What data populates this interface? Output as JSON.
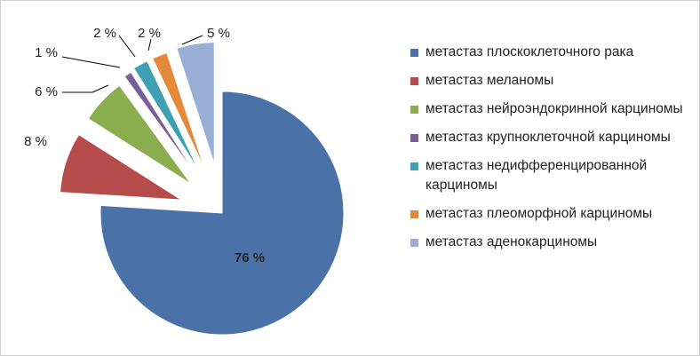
{
  "chart_data": {
    "type": "pie",
    "categories": [
      "метастаз плоскоклеточного рака",
      "метастаз меланомы",
      "метастаз нейроэндокринной карциномы",
      "метастаз крупноклеточной карциномы",
      "метастаз недифференцированной карциномы",
      "метастаз плеоморфной карциномы",
      "метастаз аденокарциномы"
    ],
    "values": [
      76,
      8,
      6,
      1,
      2,
      2,
      5
    ],
    "data_labels": [
      "76 %",
      "8 %",
      "6 %",
      "1 %",
      "2 %",
      "2 %",
      "5 %"
    ],
    "colors": [
      "#4A72A8",
      "#B54B4B",
      "#8AAE4E",
      "#7A5E9A",
      "#3FA0B4",
      "#E4893A",
      "#9AAFD6"
    ],
    "legend_position": "right",
    "exploded": true
  }
}
